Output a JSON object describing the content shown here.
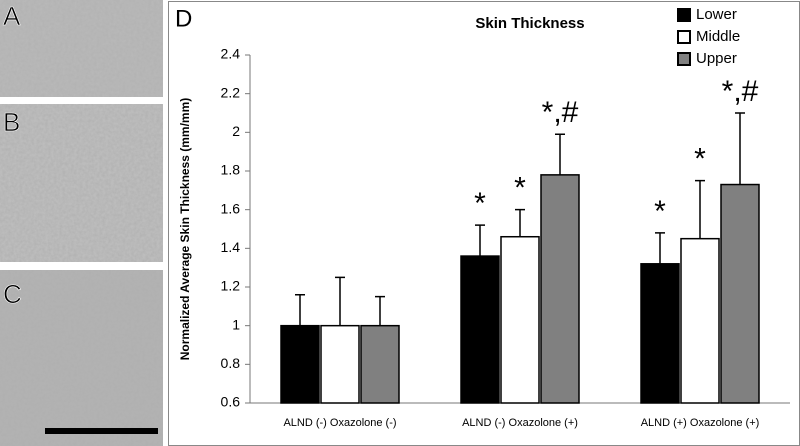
{
  "panel_labels": [
    "A",
    "B",
    "C"
  ],
  "chart_data": {
    "type": "bar",
    "panel_label": "D",
    "title": "Skin Thickness",
    "y_label": "Normalized Average Skin Thickness (mm/mm)",
    "categories": [
      "ALND (-) Oxazolone (-)",
      "ALND (-) Oxazolone (+)",
      "ALND (+) Oxazolone (+)"
    ],
    "series": [
      {
        "name": "Lower",
        "color": "#000000",
        "values": [
          1.0,
          1.36,
          1.32
        ],
        "errors": [
          0.16,
          0.16,
          0.16
        ],
        "annotations": [
          null,
          "*",
          "*"
        ]
      },
      {
        "name": "Middle",
        "color": "#ffffff",
        "values": [
          1.0,
          1.46,
          1.45
        ],
        "errors": [
          0.25,
          0.14,
          0.3
        ],
        "annotations": [
          null,
          "*",
          "*"
        ]
      },
      {
        "name": "Upper",
        "color": "#808080",
        "values": [
          1.0,
          1.78,
          1.73
        ],
        "errors": [
          0.15,
          0.21,
          0.37
        ],
        "annotations": [
          null,
          "*,#",
          "*,#"
        ]
      }
    ],
    "ylim": [
      0.6,
      2.4
    ],
    "yticks": [
      0.6,
      0.8,
      1,
      1.2,
      1.4,
      1.6,
      1.8,
      2,
      2.2,
      2.4
    ],
    "grid": false,
    "legend": "top-right"
  }
}
